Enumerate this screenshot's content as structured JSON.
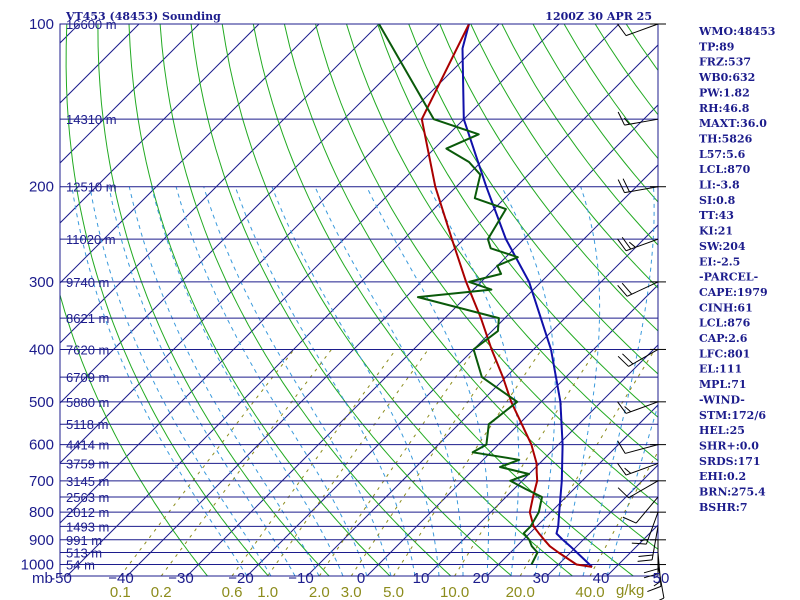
{
  "header": {
    "station": "VT453 (48453) Sounding",
    "time": "1200Z 30 APR 25"
  },
  "axis": {
    "pressure_unit": "mb",
    "mixing_ratio_unit": "g/kg"
  },
  "colors": {
    "frame": "#1c1c8c",
    "isobar": "#1c1c8c",
    "isotherm": "#1c1c8c",
    "dry_adiabat": "#22aa22",
    "moist_adiabat": "#3a9adc",
    "mixing_ratio": "#8c8c1c",
    "temperature": "#aa0000",
    "dewpoint": "#0a5a0a",
    "parcel": "#1010aa",
    "wind_barb": "#000000"
  },
  "stats": [
    "WMO:48453",
    "TP:89",
    "FRZ:537",
    "WB0:632",
    "PW:1.82",
    "RH:46.8",
    "MAXT:36.0",
    "TH:5826",
    "L57:5.6",
    "LCL:870",
    "LI:-3.8",
    "SI:0.8",
    "TT:43",
    "KI:21",
    "SW:204",
    "EI:-2.5",
    "-PARCEL-",
    "CAPE:1979",
    "CINH:61",
    "LCL:876",
    "CAP:2.6",
    "LFC:801",
    "EL:111",
    "MPL:71",
    "-WIND-",
    "STM:172/6",
    "HEL:25",
    "SHR+:0.0",
    "SRDS:171",
    "EHI:0.2",
    "BRN:275.4",
    "BSHR:7"
  ],
  "chart_data": {
    "type": "skew-t",
    "pressure_levels": [
      100,
      200,
      300,
      400,
      500,
      600,
      700,
      800,
      900,
      1000
    ],
    "pressure_tick_labels": [
      "100",
      "200",
      "300",
      "400",
      "500",
      "600",
      "700",
      "800",
      "900",
      "1000"
    ],
    "height_labels": [
      {
        "p": 100,
        "label": "16600 m"
      },
      {
        "p": 150,
        "label": "14310 m"
      },
      {
        "p": 200,
        "label": "12510 m"
      },
      {
        "p": 250,
        "label": "11020 m"
      },
      {
        "p": 300,
        "label": "9740 m"
      },
      {
        "p": 350,
        "label": "8621 m"
      },
      {
        "p": 400,
        "label": "7620 m"
      },
      {
        "p": 450,
        "label": "6709 m"
      },
      {
        "p": 500,
        "label": "5880 m"
      },
      {
        "p": 550,
        "label": "5118 m"
      },
      {
        "p": 600,
        "label": "4414 m"
      },
      {
        "p": 650,
        "label": "3759 m"
      },
      {
        "p": 700,
        "label": "3145 m"
      },
      {
        "p": 750,
        "label": "2563 m"
      },
      {
        "p": 800,
        "label": "2012 m"
      },
      {
        "p": 850,
        "label": "1493 m"
      },
      {
        "p": 900,
        "label": "991 m"
      },
      {
        "p": 950,
        "label": "513 m"
      },
      {
        "p": 1000,
        "label": "54 m"
      }
    ],
    "temperature_ticks": [
      -50,
      -40,
      -30,
      -20,
      -10,
      0,
      10,
      20,
      30,
      40,
      50
    ],
    "temperature_tick_labels": [
      "-50",
      "−40",
      "−30",
      "−20",
      "−10",
      "0",
      "10",
      "20",
      "30",
      "40",
      "50"
    ],
    "mixing_ratio_ticks": [
      0.1,
      0.2,
      0.6,
      1.0,
      2.0,
      3.0,
      5.0,
      10.0,
      20.0,
      40.0
    ],
    "mixing_ratio_tick_labels": [
      "0.1",
      "0.2",
      "0.6",
      "1.0",
      "2.0",
      "3.0",
      "5.0",
      "10.0",
      "20.0",
      "40.0"
    ],
    "temperature": {
      "p": [
        1010,
        1000,
        950,
        925,
        900,
        875,
        850,
        800,
        750,
        700,
        675,
        650,
        600,
        550,
        500,
        450,
        400,
        350,
        300,
        250,
        200,
        150,
        100
      ],
      "t": [
        36.0,
        33,
        28,
        25.5,
        23.5,
        21.5,
        19.5,
        16.5,
        14.5,
        12.5,
        11,
        9.5,
        5.5,
        0.5,
        -5,
        -10.5,
        -17,
        -24,
        -32.5,
        -42,
        -53.5,
        -67,
        -75
      ]
    },
    "dewpoint": {
      "p": [
        1000,
        950,
        925,
        900,
        875,
        850,
        800,
        750,
        725,
        700,
        680,
        660,
        640,
        620,
        600,
        550,
        500,
        450,
        400,
        370,
        350,
        320,
        310,
        300,
        290,
        280,
        270,
        260,
        250,
        220,
        210,
        190,
        180,
        170,
        160,
        150,
        100
      ],
      "td": [
        25.5,
        24.5,
        22.5,
        21,
        19,
        19,
        18,
        16,
        12,
        8,
        10,
        4,
        6,
        -3,
        -2,
        -5,
        -4,
        -14,
        -20,
        -19,
        -21,
        -38,
        -27,
        -32,
        -28,
        -30,
        -28,
        -34,
        -36,
        -38,
        -45,
        -48,
        -52,
        -58,
        -55,
        -65,
        -90
      ]
    },
    "parcel": {
      "p": [
        1010,
        925,
        900,
        876,
        850,
        800,
        700,
        600,
        500,
        400,
        300,
        250,
        200,
        150,
        111,
        100
      ],
      "t": [
        36.0,
        28.9,
        26.6,
        24.5,
        23.6,
        21.4,
        16.6,
        10.7,
        3.2,
        -7.1,
        -22,
        -33,
        -45,
        -60,
        -72,
        -75
      ]
    },
    "wind_barbs": [
      {
        "p": 1000,
        "dir": 170,
        "spd": 10
      },
      {
        "p": 950,
        "dir": 175,
        "spd": 15
      },
      {
        "p": 900,
        "dir": 180,
        "spd": 20
      },
      {
        "p": 850,
        "dir": 190,
        "spd": 20
      },
      {
        "p": 800,
        "dir": 200,
        "spd": 15
      },
      {
        "p": 750,
        "dir": 220,
        "spd": 10
      },
      {
        "p": 700,
        "dir": 240,
        "spd": 10
      },
      {
        "p": 650,
        "dir": 250,
        "spd": 15
      },
      {
        "p": 600,
        "dir": 255,
        "spd": 10
      },
      {
        "p": 500,
        "dir": 250,
        "spd": 15
      },
      {
        "p": 400,
        "dir": 240,
        "spd": 20
      },
      {
        "p": 300,
        "dir": 245,
        "spd": 20
      },
      {
        "p": 250,
        "dir": 250,
        "spd": 25
      },
      {
        "p": 200,
        "dir": 260,
        "spd": 20
      },
      {
        "p": 150,
        "dir": 260,
        "spd": 15
      },
      {
        "p": 100,
        "dir": 250,
        "spd": 10
      }
    ]
  }
}
